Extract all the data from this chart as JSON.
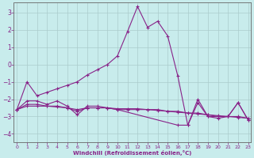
{
  "xlabel": "Windchill (Refroidissement éolien,°C)",
  "background_color": "#c8ecec",
  "grid_color": "#b0d8d8",
  "line_color": "#882288",
  "x_ticks": [
    0,
    1,
    2,
    3,
    4,
    5,
    6,
    7,
    8,
    9,
    10,
    11,
    12,
    13,
    14,
    15,
    16,
    17,
    18,
    19,
    20,
    21,
    22,
    23
  ],
  "y_ticks": [
    -4,
    -3,
    -2,
    -1,
    0,
    1,
    2,
    3
  ],
  "xlim": [
    -0.3,
    23.3
  ],
  "ylim": [
    -4.5,
    3.6
  ],
  "series": [
    {
      "x": [
        0,
        1,
        2,
        3,
        4,
        5,
        6,
        7,
        8,
        9,
        10,
        11,
        12,
        13,
        14,
        15,
        16,
        17,
        18,
        19,
        20,
        21,
        22,
        23
      ],
      "y": [
        -2.6,
        -1.0,
        -1.8,
        -1.6,
        -1.4,
        -1.2,
        -1.0,
        -0.6,
        -0.3,
        0.0,
        0.5,
        1.9,
        3.35,
        2.15,
        2.5,
        1.65,
        -0.65,
        -3.5,
        -2.0,
        -3.0,
        -3.0,
        -3.0,
        -2.2,
        -3.2
      ]
    },
    {
      "x": [
        0,
        1,
        2,
        3,
        4,
        5,
        6,
        7,
        8,
        9,
        10,
        16,
        17,
        18,
        19,
        20,
        21,
        22,
        23
      ],
      "y": [
        -2.6,
        -2.1,
        -2.1,
        -2.3,
        -2.1,
        -2.4,
        -2.9,
        -2.4,
        -2.4,
        -2.5,
        -2.6,
        -3.5,
        -3.5,
        -2.2,
        -3.0,
        -3.1,
        -3.0,
        -2.2,
        -3.2
      ]
    },
    {
      "x": [
        0,
        1,
        2,
        3,
        4,
        5,
        6,
        7,
        8,
        9,
        10,
        11,
        12,
        13,
        14,
        15,
        16,
        17,
        18,
        19,
        20,
        21,
        22,
        23
      ],
      "y": [
        -2.6,
        -2.3,
        -2.3,
        -2.4,
        -2.4,
        -2.5,
        -2.7,
        -2.5,
        -2.5,
        -2.5,
        -2.6,
        -2.6,
        -2.6,
        -2.6,
        -2.6,
        -2.7,
        -2.7,
        -2.8,
        -2.8,
        -2.9,
        -3.0,
        -3.0,
        -3.05,
        -3.1
      ]
    },
    {
      "x": [
        0,
        1,
        2,
        3,
        4,
        5,
        6,
        7,
        8,
        9,
        10,
        11,
        12,
        13,
        14,
        15,
        16,
        17,
        18,
        19,
        20,
        21,
        22,
        23
      ],
      "y": [
        -2.6,
        -2.4,
        -2.4,
        -2.4,
        -2.45,
        -2.5,
        -2.6,
        -2.5,
        -2.5,
        -2.5,
        -2.55,
        -2.55,
        -2.55,
        -2.6,
        -2.65,
        -2.7,
        -2.75,
        -2.8,
        -2.85,
        -2.9,
        -2.95,
        -3.0,
        -3.0,
        -3.1
      ]
    }
  ]
}
